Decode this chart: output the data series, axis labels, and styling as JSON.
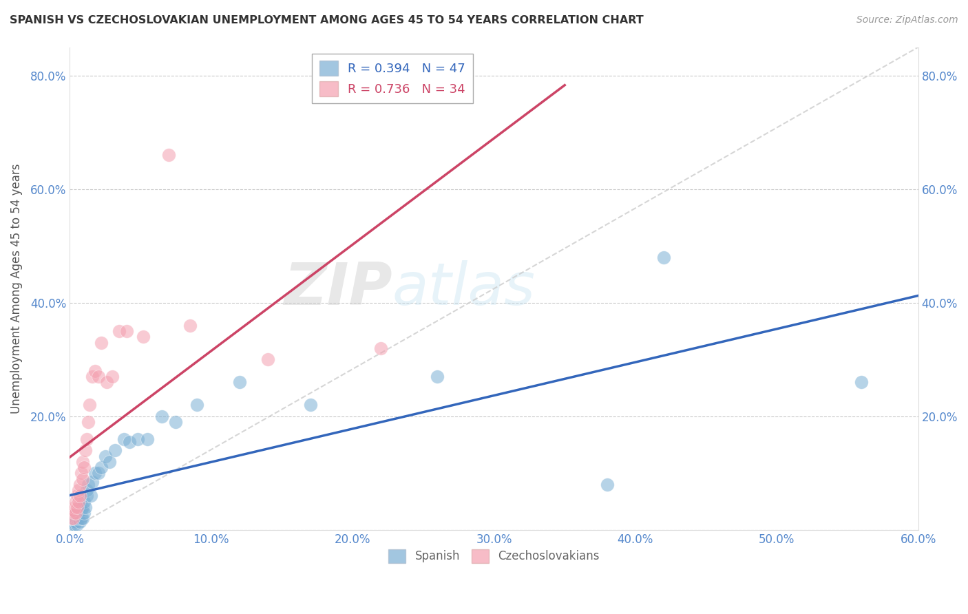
{
  "title": "SPANISH VS CZECHOSLOVAKIAN UNEMPLOYMENT AMONG AGES 45 TO 54 YEARS CORRELATION CHART",
  "source": "Source: ZipAtlas.com",
  "ylabel": "Unemployment Among Ages 45 to 54 years",
  "xlabel": "",
  "xlim": [
    0.0,
    0.6
  ],
  "ylim": [
    0.0,
    0.85
  ],
  "xticks": [
    0.0,
    0.1,
    0.2,
    0.3,
    0.4,
    0.5,
    0.6
  ],
  "yticks": [
    0.0,
    0.2,
    0.4,
    0.6,
    0.8
  ],
  "ytick_labels": [
    "",
    "20.0%",
    "40.0%",
    "60.0%",
    "80.0%"
  ],
  "xtick_labels": [
    "0.0%",
    "10.0%",
    "20.0%",
    "30.0%",
    "40.0%",
    "50.0%",
    "60.0%"
  ],
  "spanish_color": "#7bafd4",
  "czech_color": "#f4a0b0",
  "spanish_R": 0.394,
  "spanish_N": 47,
  "czech_R": 0.736,
  "czech_N": 34,
  "spanish_line_color": "#3366bb",
  "czech_line_color": "#cc4466",
  "background_color": "#ffffff",
  "grid_color": "#bbbbbb",
  "watermark_text": "ZIPatlas",
  "spanish_x": [
    0.001,
    0.002,
    0.002,
    0.003,
    0.003,
    0.003,
    0.004,
    0.004,
    0.004,
    0.005,
    0.005,
    0.005,
    0.006,
    0.006,
    0.007,
    0.007,
    0.008,
    0.008,
    0.009,
    0.009,
    0.01,
    0.01,
    0.011,
    0.012,
    0.012,
    0.013,
    0.015,
    0.016,
    0.018,
    0.02,
    0.022,
    0.025,
    0.028,
    0.032,
    0.038,
    0.042,
    0.048,
    0.055,
    0.065,
    0.075,
    0.09,
    0.12,
    0.17,
    0.26,
    0.38,
    0.42,
    0.56
  ],
  "spanish_y": [
    0.01,
    0.02,
    0.015,
    0.01,
    0.02,
    0.025,
    0.015,
    0.02,
    0.03,
    0.01,
    0.02,
    0.03,
    0.02,
    0.03,
    0.015,
    0.04,
    0.02,
    0.035,
    0.02,
    0.04,
    0.03,
    0.05,
    0.04,
    0.06,
    0.07,
    0.08,
    0.06,
    0.085,
    0.1,
    0.1,
    0.11,
    0.13,
    0.12,
    0.14,
    0.16,
    0.155,
    0.16,
    0.16,
    0.2,
    0.19,
    0.22,
    0.26,
    0.22,
    0.27,
    0.08,
    0.48,
    0.26
  ],
  "czech_x": [
    0.001,
    0.002,
    0.002,
    0.003,
    0.003,
    0.004,
    0.004,
    0.005,
    0.005,
    0.006,
    0.006,
    0.007,
    0.007,
    0.008,
    0.009,
    0.009,
    0.01,
    0.011,
    0.012,
    0.013,
    0.014,
    0.016,
    0.018,
    0.02,
    0.022,
    0.026,
    0.03,
    0.035,
    0.04,
    0.052,
    0.07,
    0.085,
    0.14,
    0.22
  ],
  "czech_y": [
    0.02,
    0.02,
    0.035,
    0.03,
    0.04,
    0.03,
    0.05,
    0.04,
    0.06,
    0.05,
    0.07,
    0.06,
    0.08,
    0.1,
    0.09,
    0.12,
    0.11,
    0.14,
    0.16,
    0.19,
    0.22,
    0.27,
    0.28,
    0.27,
    0.33,
    0.26,
    0.27,
    0.35,
    0.35,
    0.34,
    0.66,
    0.36,
    0.3,
    0.32
  ]
}
